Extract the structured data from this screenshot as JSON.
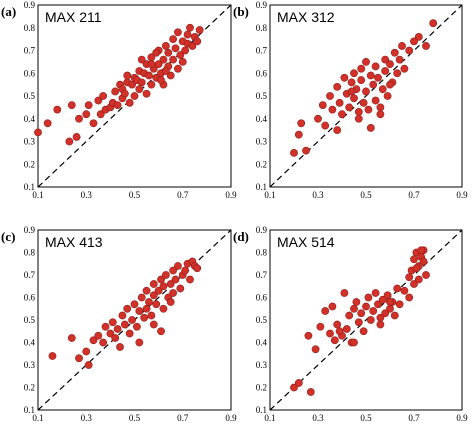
{
  "chart_data": [
    {
      "type": "scatter",
      "panel": "(a)",
      "title": "MAX 211",
      "xlim": [
        0.1,
        0.9
      ],
      "ylim": [
        0.1,
        0.9
      ],
      "xticks": [
        "0.1",
        "0.3",
        "0.5",
        "0.7",
        "0.9"
      ],
      "yticks": [
        "0.1",
        "0.2",
        "0.3",
        "0.4",
        "0.5",
        "0.6",
        "0.7",
        "0.8",
        "0.9"
      ],
      "reference_line": "y = x",
      "x": [
        0.1,
        0.14,
        0.18,
        0.23,
        0.24,
        0.26,
        0.27,
        0.3,
        0.31,
        0.33,
        0.35,
        0.36,
        0.37,
        0.38,
        0.4,
        0.41,
        0.42,
        0.43,
        0.44,
        0.45,
        0.45,
        0.46,
        0.47,
        0.48,
        0.49,
        0.5,
        0.5,
        0.51,
        0.52,
        0.52,
        0.53,
        0.54,
        0.55,
        0.55,
        0.56,
        0.57,
        0.57,
        0.58,
        0.59,
        0.6,
        0.6,
        0.61,
        0.62,
        0.62,
        0.63,
        0.64,
        0.64,
        0.65,
        0.66,
        0.66,
        0.67,
        0.68,
        0.68,
        0.69,
        0.7,
        0.7,
        0.71,
        0.72,
        0.72,
        0.73,
        0.74,
        0.75,
        0.76,
        0.77,
        0.63,
        0.57,
        0.61,
        0.53,
        0.47,
        0.59
      ],
      "y": [
        0.34,
        0.38,
        0.44,
        0.3,
        0.46,
        0.32,
        0.4,
        0.42,
        0.46,
        0.38,
        0.48,
        0.42,
        0.5,
        0.44,
        0.45,
        0.47,
        0.52,
        0.46,
        0.55,
        0.49,
        0.53,
        0.51,
        0.56,
        0.47,
        0.55,
        0.5,
        0.58,
        0.57,
        0.53,
        0.61,
        0.56,
        0.6,
        0.51,
        0.64,
        0.59,
        0.55,
        0.67,
        0.62,
        0.58,
        0.7,
        0.64,
        0.6,
        0.55,
        0.66,
        0.72,
        0.63,
        0.69,
        0.59,
        0.75,
        0.66,
        0.71,
        0.62,
        0.78,
        0.68,
        0.65,
        0.74,
        0.7,
        0.77,
        0.73,
        0.8,
        0.72,
        0.76,
        0.74,
        0.79,
        0.61,
        0.64,
        0.57,
        0.66,
        0.59,
        0.69
      ]
    },
    {
      "type": "scatter",
      "panel": "(b)",
      "title": "MAX 312",
      "xlim": [
        0.1,
        0.9
      ],
      "ylim": [
        0.1,
        0.9
      ],
      "xticks": [
        "0.1",
        "0.3",
        "0.5",
        "0.7",
        "0.9"
      ],
      "yticks": [
        "0.1",
        "0.2",
        "0.3",
        "0.4",
        "0.5",
        "0.6",
        "0.7",
        "0.8",
        "0.9"
      ],
      "reference_line": "y = x",
      "x": [
        0.2,
        0.22,
        0.23,
        0.25,
        0.3,
        0.32,
        0.33,
        0.35,
        0.36,
        0.38,
        0.39,
        0.4,
        0.41,
        0.42,
        0.43,
        0.44,
        0.45,
        0.45,
        0.46,
        0.47,
        0.48,
        0.48,
        0.49,
        0.5,
        0.5,
        0.51,
        0.52,
        0.53,
        0.54,
        0.54,
        0.55,
        0.56,
        0.57,
        0.58,
        0.58,
        0.59,
        0.6,
        0.61,
        0.62,
        0.63,
        0.64,
        0.65,
        0.66,
        0.68,
        0.7,
        0.72,
        0.75,
        0.78,
        0.47,
        0.52,
        0.56,
        0.44,
        0.6,
        0.38
      ],
      "y": [
        0.25,
        0.33,
        0.38,
        0.26,
        0.4,
        0.46,
        0.37,
        0.5,
        0.44,
        0.54,
        0.47,
        0.42,
        0.58,
        0.51,
        0.45,
        0.56,
        0.6,
        0.49,
        0.53,
        0.43,
        0.62,
        0.57,
        0.47,
        0.52,
        0.65,
        0.44,
        0.59,
        0.55,
        0.48,
        0.63,
        0.58,
        0.45,
        0.53,
        0.66,
        0.61,
        0.5,
        0.64,
        0.56,
        0.69,
        0.6,
        0.66,
        0.72,
        0.62,
        0.7,
        0.74,
        0.76,
        0.72,
        0.82,
        0.4,
        0.36,
        0.42,
        0.52,
        0.55,
        0.35
      ]
    },
    {
      "type": "scatter",
      "panel": "(c)",
      "title": "MAX 413",
      "xlim": [
        0.1,
        0.9
      ],
      "ylim": [
        0.1,
        0.9
      ],
      "xticks": [
        "0.1",
        "0.3",
        "0.5",
        "0.7",
        "0.9"
      ],
      "yticks": [
        "0.1",
        "0.2",
        "0.3",
        "0.4",
        "0.5",
        "0.6",
        "0.7",
        "0.8",
        "0.9"
      ],
      "reference_line": "y = x",
      "x": [
        0.16,
        0.24,
        0.27,
        0.3,
        0.31,
        0.33,
        0.35,
        0.37,
        0.38,
        0.4,
        0.41,
        0.42,
        0.43,
        0.45,
        0.46,
        0.47,
        0.48,
        0.49,
        0.5,
        0.51,
        0.52,
        0.53,
        0.54,
        0.55,
        0.55,
        0.56,
        0.57,
        0.58,
        0.58,
        0.59,
        0.6,
        0.61,
        0.62,
        0.62,
        0.63,
        0.64,
        0.65,
        0.66,
        0.66,
        0.67,
        0.68,
        0.69,
        0.7,
        0.71,
        0.72,
        0.73,
        0.74,
        0.75,
        0.76,
        0.58,
        0.52,
        0.61,
        0.44,
        0.65
      ],
      "y": [
        0.34,
        0.42,
        0.33,
        0.36,
        0.3,
        0.41,
        0.43,
        0.4,
        0.47,
        0.44,
        0.49,
        0.42,
        0.46,
        0.52,
        0.48,
        0.55,
        0.44,
        0.5,
        0.57,
        0.47,
        0.54,
        0.6,
        0.51,
        0.55,
        0.63,
        0.58,
        0.52,
        0.61,
        0.66,
        0.57,
        0.63,
        0.68,
        0.55,
        0.65,
        0.7,
        0.6,
        0.66,
        0.72,
        0.62,
        0.68,
        0.74,
        0.64,
        0.7,
        0.72,
        0.75,
        0.68,
        0.76,
        0.74,
        0.73,
        0.48,
        0.4,
        0.45,
        0.38,
        0.58
      ]
    },
    {
      "type": "scatter",
      "panel": "(d)",
      "title": "MAX 514",
      "xlim": [
        0.1,
        0.9
      ],
      "ylim": [
        0.1,
        0.9
      ],
      "xticks": [
        "0.1",
        "0.3",
        "0.5",
        "0.7",
        "0.9"
      ],
      "yticks": [
        "0.1",
        "0.2",
        "0.3",
        "0.4",
        "0.5",
        "0.6",
        "0.7",
        "0.8",
        "0.9"
      ],
      "reference_line": "y = x",
      "x": [
        0.2,
        0.22,
        0.26,
        0.27,
        0.29,
        0.31,
        0.33,
        0.35,
        0.36,
        0.37,
        0.38,
        0.4,
        0.41,
        0.42,
        0.43,
        0.44,
        0.45,
        0.46,
        0.47,
        0.48,
        0.49,
        0.5,
        0.51,
        0.52,
        0.53,
        0.54,
        0.55,
        0.56,
        0.57,
        0.58,
        0.59,
        0.6,
        0.61,
        0.62,
        0.63,
        0.64,
        0.66,
        0.68,
        0.69,
        0.7,
        0.71,
        0.72,
        0.73,
        0.74,
        0.75,
        0.7,
        0.72,
        0.74,
        0.68,
        0.71,
        0.73,
        0.6,
        0.56,
        0.45,
        0.39
      ],
      "y": [
        0.2,
        0.22,
        0.43,
        0.18,
        0.37,
        0.47,
        0.54,
        0.44,
        0.56,
        0.41,
        0.48,
        0.43,
        0.62,
        0.46,
        0.52,
        0.4,
        0.55,
        0.58,
        0.49,
        0.53,
        0.45,
        0.56,
        0.6,
        0.5,
        0.54,
        0.62,
        0.57,
        0.48,
        0.59,
        0.53,
        0.61,
        0.55,
        0.58,
        0.52,
        0.64,
        0.57,
        0.63,
        0.69,
        0.72,
        0.77,
        0.8,
        0.74,
        0.78,
        0.81,
        0.7,
        0.66,
        0.68,
        0.76,
        0.6,
        0.73,
        0.81,
        0.58,
        0.51,
        0.4,
        0.45
      ]
    }
  ]
}
